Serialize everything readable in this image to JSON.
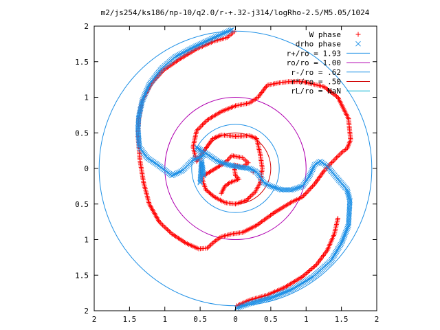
{
  "chart_data": {
    "type": "scatter",
    "title": "m2/js254/ks186/np-10/q2.0/r-+.32-j314/logRho-2.5/M5.05/1024",
    "xlabel": "",
    "ylabel": "",
    "xlim": [
      -2,
      2
    ],
    "ylim": [
      -2,
      2
    ],
    "x_ticks": [
      -2,
      -1.5,
      -1,
      -0.5,
      0,
      0.5,
      1,
      1.5,
      2
    ],
    "y_ticks": [
      -2,
      -1.5,
      -1,
      -0.5,
      0,
      0.5,
      1,
      1.5,
      2
    ],
    "x_tick_labels": [
      "2",
      "1.5",
      "1",
      "0.5",
      "0",
      "0.5",
      "1",
      "1.5",
      "2"
    ],
    "y_tick_labels": [
      "2",
      "1.5",
      "1",
      "0.5",
      "0",
      "0.5",
      "1",
      "1.5",
      "2"
    ],
    "grid": false,
    "legend_position": "top-right",
    "series": [
      {
        "name": "W phase",
        "marker": "plus",
        "color": "#ff0000",
        "points": [
          [
            -0.02,
            1.92
          ],
          [
            -0.12,
            1.84
          ],
          [
            -0.3,
            1.79
          ],
          [
            -0.55,
            1.68
          ],
          [
            -0.8,
            1.53
          ],
          [
            -1.02,
            1.38
          ],
          [
            -1.2,
            1.18
          ],
          [
            -1.32,
            0.95
          ],
          [
            -1.37,
            0.7
          ],
          [
            -1.38,
            0.45
          ],
          [
            -1.35,
            0.1
          ],
          [
            -1.3,
            -0.2
          ],
          [
            -1.22,
            -0.5
          ],
          [
            -1.08,
            -0.75
          ],
          [
            -0.9,
            -0.92
          ],
          [
            -0.7,
            -1.05
          ],
          [
            -0.52,
            -1.13
          ],
          [
            -0.4,
            -1.12
          ],
          [
            -0.3,
            -1.03
          ],
          [
            -0.2,
            -0.96
          ],
          [
            -0.05,
            -0.92
          ],
          [
            0.1,
            -0.9
          ],
          [
            0.3,
            -0.8
          ],
          [
            0.55,
            -0.62
          ],
          [
            0.8,
            -0.47
          ],
          [
            0.95,
            -0.4
          ],
          [
            1.12,
            -0.22
          ],
          [
            1.25,
            -0.04
          ],
          [
            1.38,
            0.1
          ],
          [
            1.5,
            0.22
          ],
          [
            1.58,
            0.28
          ],
          [
            1.63,
            0.4
          ],
          [
            1.6,
            0.7
          ],
          [
            1.45,
            1.0
          ],
          [
            1.25,
            1.15
          ],
          [
            0.95,
            1.22
          ],
          [
            0.75,
            1.22
          ],
          [
            0.6,
            1.2
          ],
          [
            0.45,
            1.17
          ],
          [
            0.32,
            1.0
          ],
          [
            0.2,
            0.92
          ],
          [
            0.0,
            0.88
          ],
          [
            -0.2,
            0.8
          ],
          [
            -0.4,
            0.68
          ],
          [
            -0.55,
            0.53
          ],
          [
            -0.6,
            0.3
          ],
          [
            -0.55,
            0.1
          ],
          [
            -0.32,
            0.42
          ],
          [
            -0.2,
            0.47
          ],
          [
            0.0,
            0.45
          ],
          [
            0.2,
            0.46
          ],
          [
            0.3,
            0.42
          ],
          [
            0.35,
            0.2
          ],
          [
            0.38,
            0.0
          ],
          [
            0.35,
            -0.2
          ],
          [
            0.28,
            -0.33
          ],
          [
            0.15,
            -0.45
          ],
          [
            0.0,
            -0.5
          ],
          [
            -0.15,
            -0.48
          ],
          [
            -0.3,
            -0.4
          ],
          [
            -0.42,
            -0.3
          ],
          [
            -0.48,
            -0.12
          ],
          [
            -0.15,
            0.08
          ],
          [
            -0.05,
            0.18
          ],
          [
            0.1,
            0.15
          ],
          [
            0.18,
            0.08
          ],
          [
            0.1,
            0.02
          ],
          [
            -0.02,
            0.05
          ],
          [
            0.0,
            -0.1
          ],
          [
            0.05,
            -0.15
          ],
          [
            -0.08,
            -0.2
          ],
          [
            -0.15,
            -0.25
          ],
          [
            -0.2,
            -0.35
          ],
          [
            0.25,
            -0.05
          ],
          [
            0.02,
            -1.93
          ],
          [
            0.2,
            -1.85
          ],
          [
            0.45,
            -1.78
          ],
          [
            0.7,
            -1.67
          ],
          [
            0.95,
            -1.52
          ],
          [
            1.15,
            -1.35
          ],
          [
            1.3,
            -1.15
          ],
          [
            1.4,
            -0.92
          ],
          [
            1.45,
            -0.7
          ]
        ]
      },
      {
        "name": "drho phase",
        "marker": "cross",
        "color": "#1e90e6",
        "points": [
          [
            -0.05,
            1.95
          ],
          [
            -0.3,
            1.84
          ],
          [
            -0.6,
            1.7
          ],
          [
            -0.85,
            1.57
          ],
          [
            -1.05,
            1.4
          ],
          [
            -1.22,
            1.18
          ],
          [
            -1.32,
            0.95
          ],
          [
            -1.37,
            0.72
          ],
          [
            -1.38,
            0.55
          ],
          [
            -1.36,
            0.3
          ],
          [
            -1.25,
            0.15
          ],
          [
            -1.1,
            0.05
          ],
          [
            -0.9,
            -0.1
          ],
          [
            -0.75,
            -0.03
          ],
          [
            -0.6,
            0.12
          ],
          [
            -0.45,
            0.18
          ],
          [
            -0.55,
            0.3
          ],
          [
            -0.25,
            0.1
          ],
          [
            -0.1,
            0.05
          ],
          [
            0.05,
            0.02
          ],
          [
            0.2,
            0.0
          ],
          [
            0.3,
            -0.05
          ],
          [
            0.35,
            -0.12
          ],
          [
            0.4,
            -0.2
          ],
          [
            0.5,
            -0.25
          ],
          [
            0.65,
            -0.3
          ],
          [
            0.8,
            -0.3
          ],
          [
            0.95,
            -0.25
          ],
          [
            1.05,
            -0.1
          ],
          [
            1.12,
            0.05
          ],
          [
            1.2,
            0.1
          ],
          [
            1.3,
            0.03
          ],
          [
            1.45,
            -0.15
          ],
          [
            1.58,
            -0.3
          ],
          [
            1.62,
            -0.45
          ],
          [
            1.6,
            -0.8
          ],
          [
            1.5,
            -1.05
          ],
          [
            1.35,
            -1.3
          ],
          [
            1.1,
            -1.52
          ],
          [
            0.8,
            -1.7
          ],
          [
            0.5,
            -1.82
          ],
          [
            0.2,
            -1.9
          ],
          [
            0.02,
            -1.96
          ],
          [
            -0.45,
            -0.1
          ],
          [
            -0.48,
            0.1
          ],
          [
            -0.5,
            -0.2
          ]
        ]
      }
    ],
    "circles": [
      {
        "name": "r+/ro = 1.93",
        "radius": 1.93,
        "color": "#1e90e6"
      },
      {
        "name": "ro/ro = 1.00",
        "radius": 1.0,
        "color": "#b000b0"
      },
      {
        "name": "r-/ro = .62",
        "radius": 0.62,
        "color": "#1e90e6"
      },
      {
        "name": "r*/ro = .50",
        "radius": 0.5,
        "color": "#d00000"
      },
      {
        "name": "rL/ro = NaN",
        "radius": null,
        "color": "#00b0d0"
      }
    ]
  }
}
